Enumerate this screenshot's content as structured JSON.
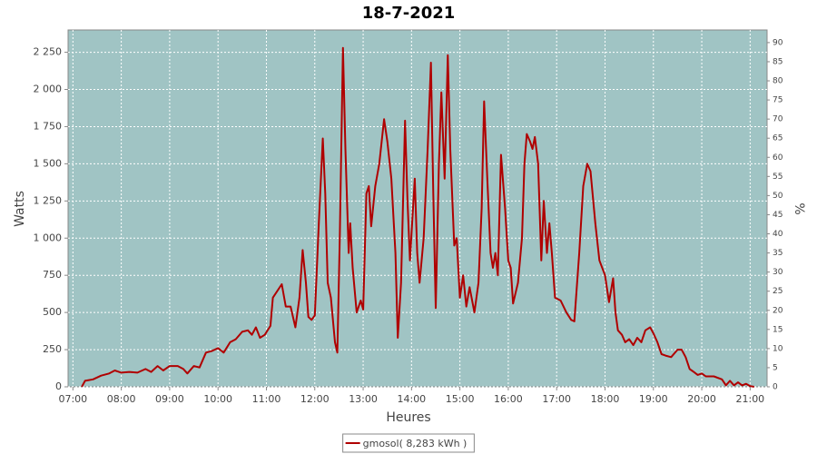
{
  "chart_data": {
    "type": "line",
    "title": "18-7-2021",
    "x_label": "Heures",
    "y_label": "Watts",
    "y2_label": "%",
    "xlim": [
      "06:54",
      "21:21"
    ],
    "xticks": [
      "07:00",
      "08:00",
      "09:00",
      "10:00",
      "11:00",
      "12:00",
      "13:00",
      "14:00",
      "15:00",
      "16:00",
      "17:00",
      "18:00",
      "19:00",
      "20:00",
      "21:00"
    ],
    "ylim": [
      0,
      2400
    ],
    "yticks": [
      0,
      250,
      500,
      750,
      {
        "value": 1000,
        "label": "1 000"
      },
      {
        "value": 1250,
        "label": "1 250"
      },
      {
        "value": 1500,
        "label": "1 500"
      },
      {
        "value": 1750,
        "label": "1 750"
      },
      {
        "value": 2000,
        "label": "2 000"
      },
      {
        "value": 2250,
        "label": "2 250"
      }
    ],
    "y2lim": [
      0,
      93.3
    ],
    "y2ticks": [
      0,
      5,
      10,
      15,
      20,
      25,
      30,
      35,
      40,
      45,
      50,
      55,
      60,
      65,
      70,
      75,
      80,
      85,
      90
    ],
    "grid": true,
    "background": "#a0c4c4",
    "legend": "bottom",
    "x": [
      "07:11",
      "07:15",
      "07:25",
      "07:35",
      "07:45",
      "07:52",
      "08:00",
      "08:10",
      "08:20",
      "08:30",
      "08:37",
      "08:45",
      "08:52",
      "09:00",
      "09:10",
      "09:17",
      "09:22",
      "09:30",
      "09:37",
      "09:45",
      "09:52",
      "10:00",
      "10:07",
      "10:15",
      "10:22",
      "10:30",
      "10:37",
      "10:42",
      "10:47",
      "10:52",
      "10:58",
      "11:05",
      "11:08",
      "11:13",
      "11:19",
      "11:24",
      "11:30",
      "11:36",
      "11:41",
      "11:45",
      "11:49",
      "11:52",
      "11:56",
      "12:00",
      "12:05",
      "12:10",
      "12:13",
      "12:16",
      "12:20",
      "12:25",
      "12:28",
      "12:31",
      "12:35",
      "12:38",
      "12:42",
      "12:44",
      "12:47",
      "12:52",
      "12:57",
      "13:00",
      "13:04",
      "13:07",
      "13:10",
      "13:15",
      "13:20",
      "13:26",
      "13:30",
      "13:35",
      "13:40",
      "13:43",
      "13:47",
      "13:52",
      "13:55",
      "13:58",
      "14:04",
      "14:07",
      "14:10",
      "14:15",
      "14:20",
      "14:24",
      "14:27",
      "14:30",
      "14:34",
      "14:37",
      "14:41",
      "14:45",
      "14:48",
      "14:53",
      "14:56",
      "15:00",
      "15:04",
      "15:08",
      "15:12",
      "15:18",
      "15:23",
      "15:27",
      "15:30",
      "15:34",
      "15:38",
      "15:41",
      "15:44",
      "15:47",
      "15:51",
      "15:56",
      "16:00",
      "16:03",
      "16:06",
      "16:12",
      "16:17",
      "16:20",
      "16:23",
      "16:27",
      "16:30",
      "16:33",
      "16:37",
      "16:41",
      "16:44",
      "16:48",
      "16:51",
      "16:54",
      "16:58",
      "17:05",
      "17:12",
      "17:18",
      "17:22",
      "17:28",
      "17:33",
      "17:38",
      "17:42",
      "17:48",
      "17:53",
      "18:00",
      "18:05",
      "18:10",
      "18:13",
      "18:16",
      "18:21",
      "18:25",
      "18:30",
      "18:35",
      "18:40",
      "18:45",
      "18:50",
      "18:56",
      "19:00",
      "19:05",
      "19:10",
      "19:15",
      "19:22",
      "19:30",
      "19:35",
      "19:40",
      "19:45",
      "19:50",
      "19:55",
      "20:00",
      "20:05",
      "20:15",
      "20:25",
      "20:30",
      "20:35",
      "20:40",
      "20:45",
      "20:50",
      "20:55",
      "21:00",
      "21:05"
    ],
    "series": [
      {
        "name": "gmosol( 8,283 kWh )",
        "color": "#b00000",
        "values": [
          0,
          40,
          50,
          75,
          90,
          110,
          95,
          100,
          95,
          120,
          100,
          140,
          110,
          140,
          140,
          120,
          90,
          140,
          130,
          230,
          240,
          260,
          230,
          300,
          320,
          370,
          380,
          350,
          400,
          330,
          350,
          410,
          600,
          640,
          690,
          540,
          540,
          400,
          600,
          920,
          700,
          470,
          450,
          480,
          1100,
          1670,
          1300,
          700,
          600,
          300,
          230,
          1000,
          2280,
          1600,
          900,
          1100,
          800,
          500,
          580,
          520,
          1300,
          1350,
          1080,
          1350,
          1500,
          1800,
          1650,
          1400,
          900,
          330,
          700,
          1790,
          1250,
          850,
          1400,
          900,
          700,
          1000,
          1600,
          2180,
          1300,
          530,
          1500,
          1980,
          1400,
          2230,
          1600,
          950,
          1000,
          600,
          750,
          540,
          670,
          500,
          700,
          1200,
          1920,
          1400,
          900,
          800,
          900,
          750,
          1560,
          1200,
          850,
          800,
          560,
          700,
          1000,
          1500,
          1700,
          1650,
          1600,
          1680,
          1500,
          850,
          1250,
          900,
          1100,
          900,
          600,
          580,
          500,
          450,
          440,
          900,
          1350,
          1500,
          1450,
          1100,
          850,
          750,
          570,
          730,
          500,
          380,
          350,
          300,
          320,
          280,
          330,
          300,
          380,
          400,
          360,
          300,
          220,
          210,
          200,
          250,
          250,
          200,
          120,
          100,
          80,
          90,
          70,
          70,
          50,
          10,
          40,
          10,
          30,
          10,
          20,
          5,
          0
        ]
      }
    ]
  }
}
